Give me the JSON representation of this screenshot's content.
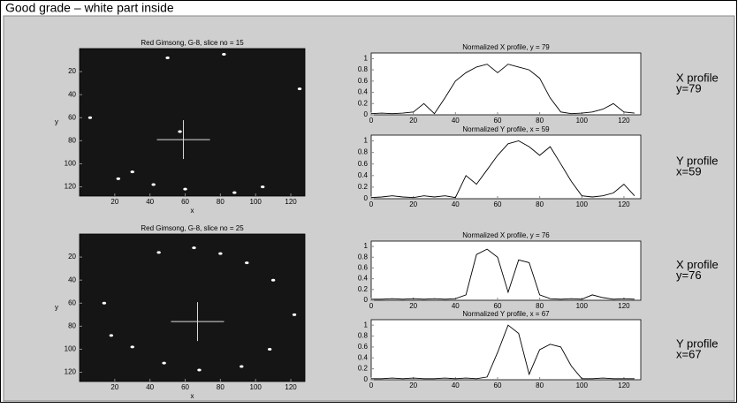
{
  "header": {
    "title": "Good grade – white part inside"
  },
  "chart_data": [
    {
      "type": "scatter",
      "title": "Red Gimsong, G-8, slice no = 15",
      "x_label": "x",
      "y_label": "y",
      "background": "#151515",
      "color": "#ffffff",
      "x": [
        50,
        82,
        125,
        6,
        57,
        22,
        30,
        42,
        104,
        88,
        60
      ],
      "values": [
        8,
        5,
        35,
        60,
        72,
        113,
        107,
        118,
        120,
        125,
        122
      ],
      "crosshair": [
        59,
        79
      ],
      "xlim": [
        0,
        128
      ],
      "ylim": [
        128,
        0
      ],
      "xticks": [
        20,
        40,
        60,
        80,
        100,
        120
      ],
      "yticks": [
        20,
        40,
        60,
        80,
        100,
        120
      ]
    },
    {
      "type": "line",
      "title": "Normalized X profile, y = 79",
      "color": "#000000",
      "annotations": [
        "X profile",
        "y=79"
      ],
      "x": [
        0,
        5,
        10,
        15,
        20,
        25,
        30,
        35,
        40,
        45,
        50,
        55,
        60,
        65,
        70,
        75,
        80,
        85,
        90,
        95,
        100,
        105,
        110,
        115,
        120,
        125
      ],
      "values": [
        0.02,
        0.03,
        0.02,
        0.03,
        0.05,
        0.2,
        0.02,
        0.3,
        0.6,
        0.75,
        0.85,
        0.9,
        0.75,
        0.9,
        0.85,
        0.8,
        0.65,
        0.3,
        0.05,
        0.02,
        0.03,
        0.05,
        0.1,
        0.2,
        0.05,
        0.03
      ],
      "xlim": [
        0,
        128
      ],
      "ylim": [
        0,
        1.1
      ],
      "xticks": [
        0,
        20,
        40,
        60,
        80,
        100,
        120
      ],
      "yticks": [
        0,
        0.2,
        0.4,
        0.6,
        0.8,
        1
      ]
    },
    {
      "type": "line",
      "title": "Normalized Y profile, x = 59",
      "color": "#000000",
      "annotations": [
        "Y profile",
        "x=59"
      ],
      "x": [
        0,
        5,
        10,
        15,
        20,
        25,
        30,
        35,
        40,
        45,
        50,
        55,
        60,
        65,
        70,
        75,
        80,
        85,
        90,
        95,
        100,
        105,
        110,
        115,
        120,
        125
      ],
      "values": [
        0.02,
        0.03,
        0.05,
        0.03,
        0.02,
        0.05,
        0.03,
        0.05,
        0.02,
        0.4,
        0.25,
        0.5,
        0.75,
        0.95,
        1.0,
        0.9,
        0.75,
        0.9,
        0.6,
        0.3,
        0.05,
        0.03,
        0.05,
        0.1,
        0.25,
        0.05
      ],
      "xlim": [
        0,
        128
      ],
      "ylim": [
        0,
        1.1
      ],
      "xticks": [
        0,
        20,
        40,
        60,
        80,
        100,
        120
      ],
      "yticks": [
        0,
        0.2,
        0.4,
        0.6,
        0.8,
        1
      ]
    },
    {
      "type": "scatter",
      "title": "Red Gimsong, G-8, slice no = 25",
      "x_label": "x",
      "y_label": "y",
      "background": "#151515",
      "color": "#ffffff",
      "x": [
        45,
        65,
        80,
        95,
        110,
        122,
        14,
        18,
        30,
        48,
        68,
        92,
        108
      ],
      "values": [
        16,
        12,
        17,
        25,
        40,
        70,
        60,
        88,
        98,
        112,
        118,
        115,
        100
      ],
      "crosshair": [
        67,
        76
      ],
      "xlim": [
        0,
        128
      ],
      "ylim": [
        128,
        0
      ],
      "xticks": [
        20,
        40,
        60,
        80,
        100,
        120
      ],
      "yticks": [
        20,
        40,
        60,
        80,
        100,
        120
      ]
    },
    {
      "type": "line",
      "title": "Normalized X profile, y = 76",
      "color": "#000000",
      "annotations": [
        "X profile",
        "y=76"
      ],
      "x": [
        0,
        5,
        10,
        15,
        20,
        25,
        30,
        35,
        40,
        45,
        50,
        55,
        60,
        65,
        70,
        75,
        80,
        85,
        90,
        95,
        100,
        105,
        110,
        115,
        120,
        125
      ],
      "values": [
        0.02,
        0.02,
        0.03,
        0.02,
        0.03,
        0.02,
        0.03,
        0.02,
        0.03,
        0.1,
        0.85,
        0.95,
        0.8,
        0.15,
        0.75,
        0.7,
        0.1,
        0.03,
        0.02,
        0.03,
        0.02,
        0.1,
        0.05,
        0.02,
        0.03,
        0.02
      ],
      "xlim": [
        0,
        128
      ],
      "ylim": [
        0,
        1.1
      ],
      "xticks": [
        0,
        20,
        40,
        60,
        80,
        100,
        120
      ],
      "yticks": [
        0,
        0.2,
        0.4,
        0.6,
        0.8,
        1
      ]
    },
    {
      "type": "line",
      "title": "Normalized Y profile, x = 67",
      "color": "#000000",
      "annotations": [
        "Y profile",
        "x=67"
      ],
      "x": [
        0,
        5,
        10,
        15,
        20,
        25,
        30,
        35,
        40,
        45,
        50,
        55,
        60,
        65,
        70,
        75,
        80,
        85,
        90,
        95,
        100,
        105,
        110,
        115,
        120,
        125
      ],
      "values": [
        0.02,
        0.02,
        0.03,
        0.02,
        0.03,
        0.02,
        0.02,
        0.03,
        0.02,
        0.03,
        0.02,
        0.05,
        0.5,
        1.0,
        0.85,
        0.1,
        0.55,
        0.65,
        0.6,
        0.25,
        0.02,
        0.02,
        0.03,
        0.02,
        0.02,
        0.02
      ],
      "xlim": [
        0,
        128
      ],
      "ylim": [
        0,
        1.1
      ],
      "xticks": [
        0,
        20,
        40,
        60,
        80,
        100,
        120
      ],
      "yticks": [
        0,
        0.2,
        0.4,
        0.6,
        0.8,
        1
      ]
    }
  ]
}
